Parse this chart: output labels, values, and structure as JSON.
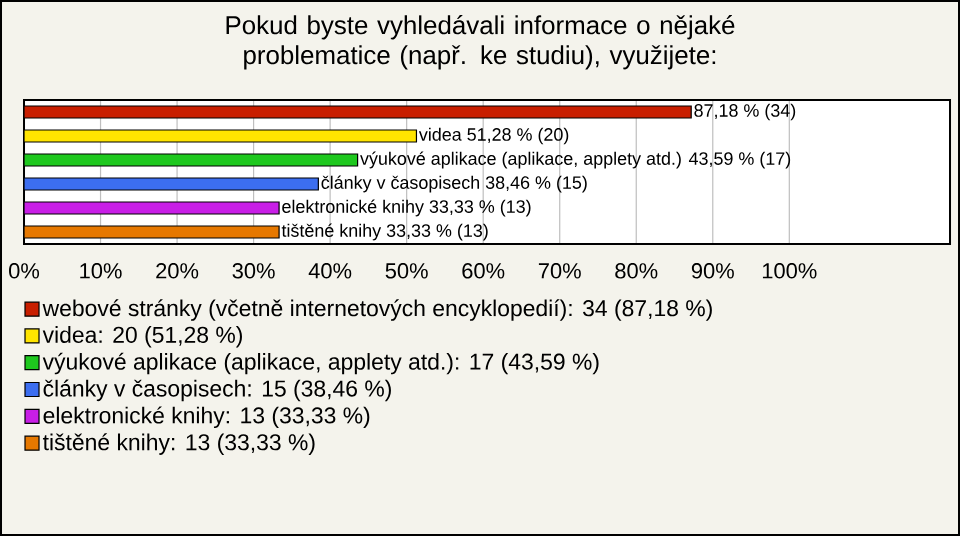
{
  "chart_data": {
    "type": "bar",
    "orientation": "horizontal",
    "title": "Pokud byste vyhledávali informace o nějaké problematice (např. ke studiu), využijete:",
    "categories": [
      null,
      null,
      null,
      null,
      null,
      null
    ],
    "series": [
      {
        "name": "webové stránky (včetně internetových encyklopedií): 34 (87,18 %)",
        "color": "#c81e00",
        "values": [
          87.18,
          null,
          null,
          null,
          null,
          null
        ],
        "value_labels": [
          "87,18 % (34)",
          null,
          null,
          null,
          null,
          null
        ]
      },
      {
        "name": "videa: 20 (51,28 %)",
        "color": "#ffe400",
        "values": [
          null,
          51.28,
          null,
          null,
          null,
          null
        ],
        "value_labels": [
          null,
          "videa 51,28 % (20)",
          null,
          null,
          null,
          null
        ]
      },
      {
        "name": "výukové aplikace (aplikace, applety atd.): 17 (43,59 %)",
        "color": "#1ec81e",
        "values": [
          null,
          null,
          43.59,
          null,
          null,
          null
        ],
        "value_labels": [
          null,
          null,
          "výukové aplikace (aplikace, applety atd.) 43,59 % (17)",
          null,
          null,
          null
        ]
      },
      {
        "name": "články v časopisech: 15 (38,46 %)",
        "color": "#3c6ef0",
        "values": [
          null,
          null,
          null,
          38.46,
          null,
          null
        ],
        "value_labels": [
          null,
          null,
          null,
          "články v časopisech 38,46 % (15)",
          null,
          null
        ]
      },
      {
        "name": "elektronické knihy: 13 (33,33 %)",
        "color": "#c81ee6",
        "values": [
          null,
          null,
          null,
          null,
          33.33,
          null
        ],
        "value_labels": [
          null,
          null,
          null,
          null,
          "elektronické knihy 33,33 % (13)",
          null
        ]
      },
      {
        "name": "tištěné knihy: 13 (33,33 %)",
        "color": "#e67800",
        "values": [
          null,
          null,
          null,
          null,
          null,
          33.33
        ],
        "value_labels": [
          null,
          null,
          null,
          null,
          null,
          "tištěné knihy 33,33 % (13)"
        ]
      }
    ],
    "xlim": [
      0,
      121
    ],
    "xticks": [
      {
        "value": 0,
        "label": "0%"
      },
      {
        "value": 10,
        "label": "10%"
      },
      {
        "value": 20,
        "label": "20%"
      },
      {
        "value": 30,
        "label": "30%"
      },
      {
        "value": 40,
        "label": "40%"
      },
      {
        "value": 50,
        "label": "50%"
      },
      {
        "value": 60,
        "label": "60%"
      },
      {
        "value": 70,
        "label": "70%"
      },
      {
        "value": 80,
        "label": "80%"
      },
      {
        "value": 90,
        "label": "90%"
      },
      {
        "value": 100,
        "label": "100%"
      }
    ],
    "grid": "x",
    "legend": "bottom",
    "tick_labels": "x"
  }
}
